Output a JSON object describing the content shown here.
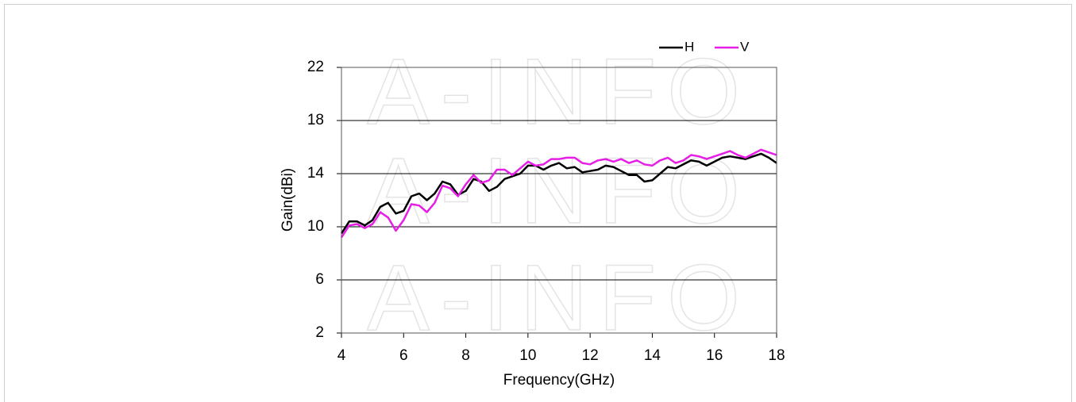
{
  "watermark": "A-INFO",
  "chart_data": {
    "type": "line",
    "x_label": "Frequency(GHz)",
    "y_label": "Gain(dBi)",
    "xlim": [
      4,
      18
    ],
    "xticks": [
      4,
      6,
      8,
      10,
      12,
      14,
      16,
      18
    ],
    "ylim": [
      2,
      22
    ],
    "yticks": [
      2,
      6,
      10,
      14,
      18,
      22
    ],
    "grid": true,
    "legend": "top-right",
    "x": [
      4,
      4.25,
      4.5,
      4.75,
      5,
      5.25,
      5.5,
      5.75,
      6,
      6.25,
      6.5,
      6.75,
      7,
      7.25,
      7.5,
      7.75,
      8,
      8.25,
      8.5,
      8.75,
      9,
      9.25,
      9.5,
      9.75,
      10,
      10.25,
      10.5,
      10.75,
      11,
      11.25,
      11.5,
      11.75,
      12,
      12.25,
      12.5,
      12.75,
      13,
      13.25,
      13.5,
      13.75,
      14,
      14.25,
      14.5,
      14.75,
      15,
      15.25,
      15.5,
      15.75,
      16,
      16.25,
      16.5,
      16.75,
      17,
      17.25,
      17.5,
      17.75,
      18
    ],
    "series": [
      {
        "name": "H",
        "color": "#000000",
        "values": [
          9.5,
          10.4,
          10.4,
          10.1,
          10.5,
          11.5,
          11.8,
          11.0,
          11.2,
          12.3,
          12.5,
          12.0,
          12.5,
          13.4,
          13.2,
          12.4,
          12.7,
          13.6,
          13.4,
          12.7,
          13.0,
          13.6,
          13.8,
          14.0,
          14.6,
          14.6,
          14.3,
          14.6,
          14.8,
          14.4,
          14.5,
          14.1,
          14.2,
          14.3,
          14.6,
          14.5,
          14.2,
          13.9,
          13.9,
          13.4,
          13.5,
          14.0,
          14.5,
          14.4,
          14.7,
          15.0,
          14.9,
          14.6,
          14.9,
          15.2,
          15.3,
          15.2,
          15.1,
          15.3,
          15.5,
          15.2,
          14.8
        ]
      },
      {
        "name": "V",
        "color": "#e61ee6",
        "values": [
          9.2,
          10.1,
          10.2,
          9.9,
          10.2,
          11.1,
          10.7,
          9.7,
          10.5,
          11.7,
          11.6,
          11.1,
          11.8,
          13.1,
          12.9,
          12.3,
          13.2,
          13.9,
          13.3,
          13.5,
          14.3,
          14.3,
          13.9,
          14.4,
          14.9,
          14.6,
          14.7,
          15.1,
          15.1,
          15.2,
          15.2,
          14.8,
          14.7,
          15.0,
          15.1,
          14.9,
          15.1,
          14.8,
          15.0,
          14.7,
          14.6,
          15.0,
          15.2,
          14.8,
          15.0,
          15.4,
          15.3,
          15.1,
          15.3,
          15.5,
          15.7,
          15.4,
          15.2,
          15.5,
          15.8,
          15.6,
          15.4
        ]
      }
    ]
  }
}
